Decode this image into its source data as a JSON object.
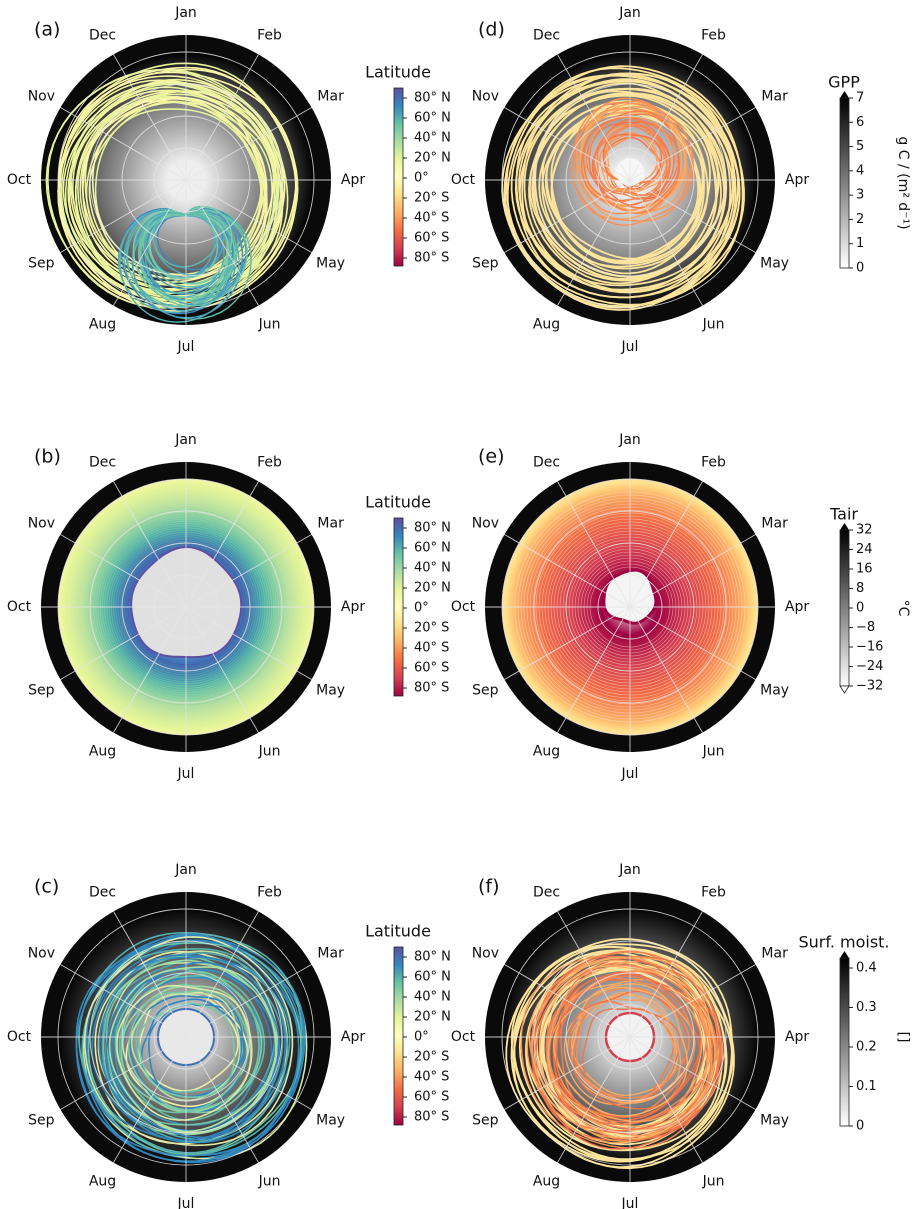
{
  "months": [
    "Jan",
    "Feb",
    "Mar",
    "Apr",
    "May",
    "Jun",
    "Jul",
    "Aug",
    "Sep",
    "Oct",
    "Nov",
    "Dec"
  ],
  "colors": {
    "ring": "#0a0a0a",
    "spectral": [
      "#9e0142",
      "#d53e4f",
      "#f46d43",
      "#fdae61",
      "#fee08b",
      "#ffffbf",
      "#e6f598",
      "#abdda4",
      "#66c2a5",
      "#3288bd",
      "#5e4fa2"
    ]
  },
  "colorbars": {
    "latitude": {
      "title": "Latitude",
      "ticks": [
        "80° N",
        "60° N",
        "40° N",
        "20° N",
        "0°",
        "20° S",
        "40° S",
        "60° S",
        "80° S"
      ]
    },
    "gpp": {
      "title": "GPP",
      "unit_label": "g C / (m² d⁻¹)",
      "ticks": [
        "7",
        "6",
        "5",
        "4",
        "3",
        "2",
        "1",
        "0"
      ]
    },
    "tair": {
      "title": "Tair",
      "unit_label": "°C",
      "ticks": [
        "32",
        "24",
        "16",
        "8",
        "0",
        "−8",
        "−16",
        "−24",
        "−32"
      ]
    },
    "moist": {
      "title": "Surf. moist.",
      "unit_label": "[]",
      "ticks": [
        "0.4",
        "0.3",
        "0.2",
        "0.1",
        "0"
      ]
    }
  },
  "chart_data": [
    {
      "panel": "(a)",
      "type": "polar-line",
      "angular_axis": "month",
      "radial_quantity": "GPP",
      "line_color_by": "latitude",
      "colorbar": "latitude",
      "background": "grey shading",
      "inner_loop": "northern latitudes, strong Jun-Jul peak",
      "outer_loops": "equatorial, near-circular"
    },
    {
      "panel": "(b)",
      "type": "polar-line",
      "angular_axis": "month",
      "radial_quantity": "Tair",
      "line_color_by": "latitude",
      "colorbar": "latitude",
      "background": "filled nearly circular shells"
    },
    {
      "panel": "(c)",
      "type": "polar-line",
      "angular_axis": "month",
      "radial_quantity": "Surf. moist.",
      "line_color_by": "latitude",
      "colorbar": "latitude",
      "background": "dark radial gradient"
    },
    {
      "panel": "(d)",
      "type": "polar-line",
      "angular_axis": "month",
      "radial_quantity": "GPP",
      "line_color_by": "GPP",
      "colorbar": "gpp",
      "colorbar_range": [
        0,
        7
      ]
    },
    {
      "panel": "(e)",
      "type": "polar-line",
      "angular_axis": "month",
      "radial_quantity": "Tair",
      "line_color_by": "Tair",
      "colorbar": "tair",
      "colorbar_range": [
        -32,
        32
      ]
    },
    {
      "panel": "(f)",
      "type": "polar-line",
      "angular_axis": "month",
      "radial_quantity": "Surf. moist.",
      "line_color_by": "Surf. moist.",
      "colorbar": "moist",
      "colorbar_range": [
        0,
        0.45
      ]
    }
  ]
}
